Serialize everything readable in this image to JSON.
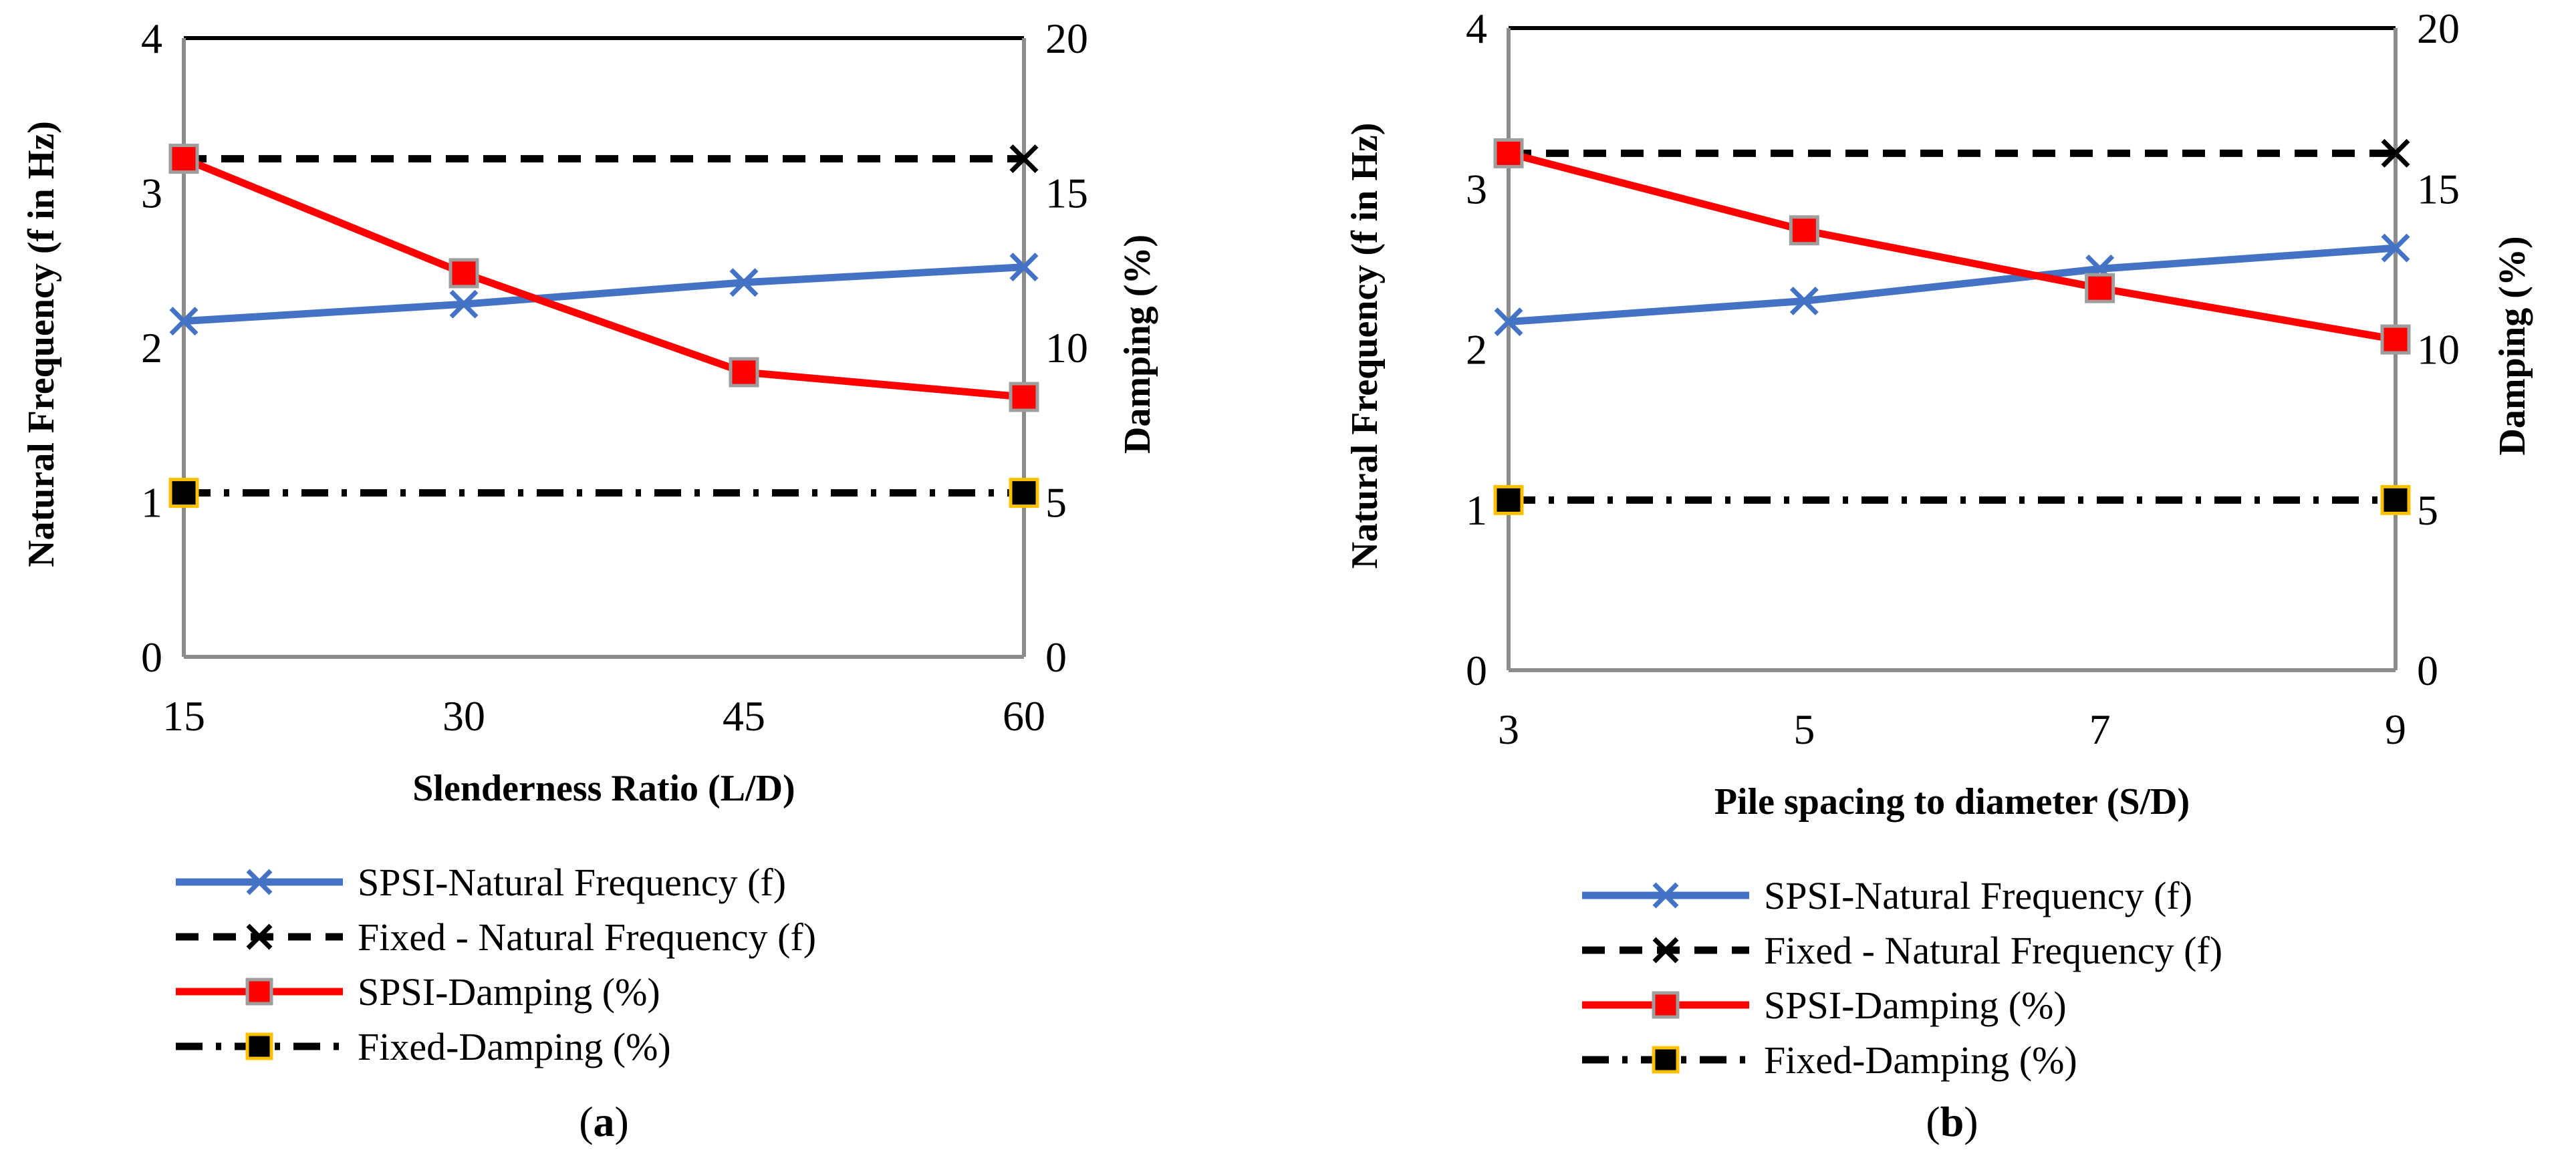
{
  "chart_data": [
    {
      "type": "line",
      "panel_label": "a",
      "xlabel": "Slenderness Ratio (L/D)",
      "ylabel_left": "Natural Frequency (f in Hz)",
      "ylabel_right": "Damping (%)",
      "categories": [
        "15",
        "30",
        "45",
        "60"
      ],
      "ylim_left": [
        0,
        4
      ],
      "ylim_right": [
        0,
        20
      ],
      "yticks_left": [
        "0",
        "1",
        "2",
        "3",
        "4"
      ],
      "yticks_right": [
        "0",
        "5",
        "10",
        "15",
        "20"
      ],
      "series": [
        {
          "name": "SPSI-Natural Frequency (f)",
          "axis": "left",
          "color": "#4472c4",
          "dash": "solid",
          "marker": "x",
          "values": [
            2.17,
            2.28,
            2.42,
            2.52
          ]
        },
        {
          "name": "Fixed - Natural Frequency (f)",
          "axis": "left",
          "color": "#000000",
          "dash": "dashed",
          "marker": "x-end",
          "values": [
            3.22,
            3.22,
            3.22,
            3.22
          ]
        },
        {
          "name": "SPSI-Damping (%)",
          "axis": "right",
          "color": "#ff0000",
          "dash": "solid",
          "marker": "square",
          "values": [
            16.1,
            12.4,
            9.2,
            8.4
          ]
        },
        {
          "name": "Fixed-Damping (%)",
          "axis": "right",
          "color": "#000000",
          "dash": "dashdot",
          "marker": "square-end",
          "values": [
            5.3,
            5.3,
            5.3,
            5.3
          ]
        }
      ]
    },
    {
      "type": "line",
      "panel_label": "b",
      "xlabel": "Pile spacing to diameter (S/D)",
      "ylabel_left": "Natural Frequency (f in Hz)",
      "ylabel_right": "Damping (%)",
      "categories": [
        "3",
        "5",
        "7",
        "9"
      ],
      "ylim_left": [
        0,
        4
      ],
      "ylim_right": [
        0,
        20
      ],
      "yticks_left": [
        "0",
        "1",
        "2",
        "3",
        "4"
      ],
      "yticks_right": [
        "0",
        "5",
        "10",
        "15",
        "20"
      ],
      "series": [
        {
          "name": "SPSI-Natural Frequency (f)",
          "axis": "left",
          "color": "#4472c4",
          "dash": "solid",
          "marker": "x",
          "values": [
            2.17,
            2.3,
            2.5,
            2.63
          ]
        },
        {
          "name": "Fixed - Natural Frequency (f)",
          "axis": "left",
          "color": "#000000",
          "dash": "dashed",
          "marker": "x-end",
          "values": [
            3.22,
            3.22,
            3.22,
            3.22
          ]
        },
        {
          "name": "SPSI-Damping (%)",
          "axis": "right",
          "color": "#ff0000",
          "dash": "solid",
          "marker": "square",
          "values": [
            16.1,
            13.7,
            11.9,
            10.3
          ]
        },
        {
          "name": "Fixed-Damping (%)",
          "axis": "right",
          "color": "#000000",
          "dash": "dashdot",
          "marker": "square-end",
          "values": [
            5.3,
            5.3,
            5.3,
            5.3
          ]
        }
      ]
    }
  ]
}
